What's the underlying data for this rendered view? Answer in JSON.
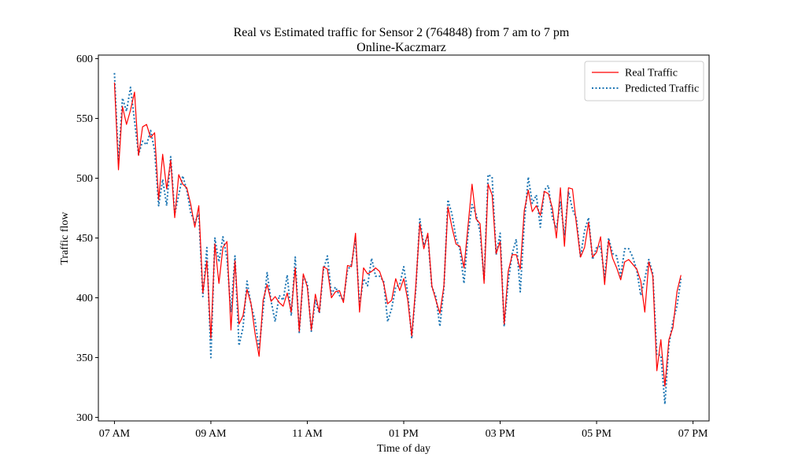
{
  "chart_data": {
    "type": "line",
    "title": "Real vs Estimated traffic for Sensor 2 (764848) from 7 am to 7 pm",
    "subtitle": "Online-Kaczmarz",
    "xlabel": "Time of day",
    "ylabel": "Traffic flow",
    "x_ticks": [
      "07 AM",
      "09 AM",
      "11 AM",
      "01 PM",
      "03 PM",
      "05 PM",
      "07 PM"
    ],
    "y_ticks": [
      "300",
      "350",
      "400",
      "450",
      "500",
      "550",
      "600"
    ],
    "xlim": [
      "06:40",
      "19:20"
    ],
    "ylim": [
      297,
      603
    ],
    "grid": false,
    "legend_position": "top-right",
    "interval_minutes": 5,
    "x": [
      "07:00",
      "07:05",
      "07:10",
      "07:15",
      "07:20",
      "07:25",
      "07:30",
      "07:35",
      "07:40",
      "07:45",
      "07:50",
      "07:55",
      "08:00",
      "08:05",
      "08:10",
      "08:15",
      "08:20",
      "08:25",
      "08:30",
      "08:35",
      "08:40",
      "08:45",
      "08:50",
      "08:55",
      "09:00",
      "09:05",
      "09:10",
      "09:15",
      "09:20",
      "09:25",
      "09:30",
      "09:35",
      "09:40",
      "09:45",
      "09:50",
      "09:55",
      "10:00",
      "10:05",
      "10:10",
      "10:15",
      "10:20",
      "10:25",
      "10:30",
      "10:35",
      "10:40",
      "10:45",
      "10:50",
      "10:55",
      "11:00",
      "11:05",
      "11:10",
      "11:15",
      "11:20",
      "11:25",
      "11:30",
      "11:35",
      "11:40",
      "11:45",
      "11:50",
      "11:55",
      "12:00",
      "12:05",
      "12:10",
      "12:15",
      "12:20",
      "12:25",
      "12:30",
      "12:35",
      "12:40",
      "12:45",
      "12:50",
      "12:55",
      "13:00",
      "13:05",
      "13:10",
      "13:15",
      "13:20",
      "13:25",
      "13:30",
      "13:35",
      "13:40",
      "13:45",
      "13:50",
      "13:55",
      "14:00",
      "14:05",
      "14:10",
      "14:15",
      "14:20",
      "14:25",
      "14:30",
      "14:35",
      "14:40",
      "14:45",
      "14:50",
      "14:55",
      "15:00",
      "15:05",
      "15:10",
      "15:15",
      "15:20",
      "15:25",
      "15:30",
      "15:35",
      "15:40",
      "15:45",
      "15:50",
      "15:55",
      "16:00",
      "16:05",
      "16:10",
      "16:15",
      "16:20",
      "16:25",
      "16:30",
      "16:35",
      "16:40",
      "16:45",
      "16:50",
      "16:55",
      "17:00",
      "17:05",
      "17:10",
      "17:15",
      "17:20",
      "17:25",
      "17:30",
      "17:35",
      "17:40",
      "17:45",
      "17:50",
      "17:55",
      "18:00",
      "18:05",
      "18:10",
      "18:15",
      "18:20",
      "18:25",
      "18:30",
      "18:35",
      "18:40",
      "18:45"
    ],
    "series": [
      {
        "name": "Real Traffic",
        "color": "#ff0000",
        "style": "solid",
        "values": [
          580,
          507,
          560,
          545,
          557,
          572,
          519,
          543,
          545,
          534,
          538,
          482,
          520,
          491,
          515,
          467,
          503,
          495,
          492,
          478,
          459,
          477,
          404,
          431,
          366,
          445,
          412,
          442,
          447,
          373,
          431,
          378,
          385,
          407,
          395,
          370,
          351,
          398,
          411,
          397,
          401,
          396,
          393,
          404,
          388,
          425,
          372,
          420,
          409,
          373,
          403,
          388,
          426,
          424,
          400,
          405,
          406,
          396,
          427,
          426,
          454,
          388,
          425,
          420,
          422,
          425,
          422,
          412,
          395,
          398,
          416,
          406,
          416,
          398,
          368,
          410,
          462,
          441,
          454,
          410,
          398,
          387,
          410,
          476,
          459,
          445,
          443,
          425,
          460,
          495,
          466,
          462,
          412,
          495,
          486,
          437,
          447,
          378,
          422,
          436,
          436,
          424,
          473,
          490,
          472,
          477,
          469,
          489,
          487,
          475,
          450,
          492,
          443,
          492,
          491,
          461,
          434,
          442,
          463,
          434,
          438,
          451,
          411,
          448,
          433,
          425,
          415,
          430,
          432,
          428,
          424,
          414,
          388,
          430,
          418,
          339,
          365,
          326,
          365,
          375,
          405,
          419
        ]
      },
      {
        "name": "Predicted Traffic",
        "color": "#1f77b4",
        "style": "dotted",
        "values": [
          588,
          513,
          567,
          556,
          576,
          548,
          520,
          531,
          528,
          540,
          523,
          477,
          499,
          477,
          518,
          470,
          486,
          502,
          490,
          471,
          463,
          470,
          401,
          442,
          350,
          450,
          430,
          451,
          433,
          388,
          435,
          360,
          375,
          414,
          394,
          381,
          357,
          390,
          421,
          397,
          380,
          402,
          398,
          419,
          385,
          434,
          371,
          418,
          412,
          372,
          398,
          387,
          423,
          435,
          403,
          409,
          402,
          398,
          423,
          428,
          449,
          394,
          416,
          410,
          433,
          418,
          418,
          414,
          380,
          391,
          409,
          411,
          426,
          404,
          366,
          407,
          466,
          444,
          452,
          409,
          401,
          376,
          408,
          482,
          470,
          450,
          440,
          412,
          453,
          478,
          470,
          455,
          415,
          503,
          501,
          436,
          454,
          376,
          413,
          437,
          449,
          405,
          462,
          501,
          479,
          486,
          459,
          490,
          494,
          467,
          458,
          480,
          452,
          489,
          474,
          466,
          434,
          456,
          467,
          432,
          442,
          443,
          417,
          450,
          437,
          435,
          418,
          441,
          441,
          434,
          423,
          402,
          416,
          432,
          420,
          352,
          352,
          311,
          361,
          380,
          393,
          416
        ]
      }
    ]
  }
}
